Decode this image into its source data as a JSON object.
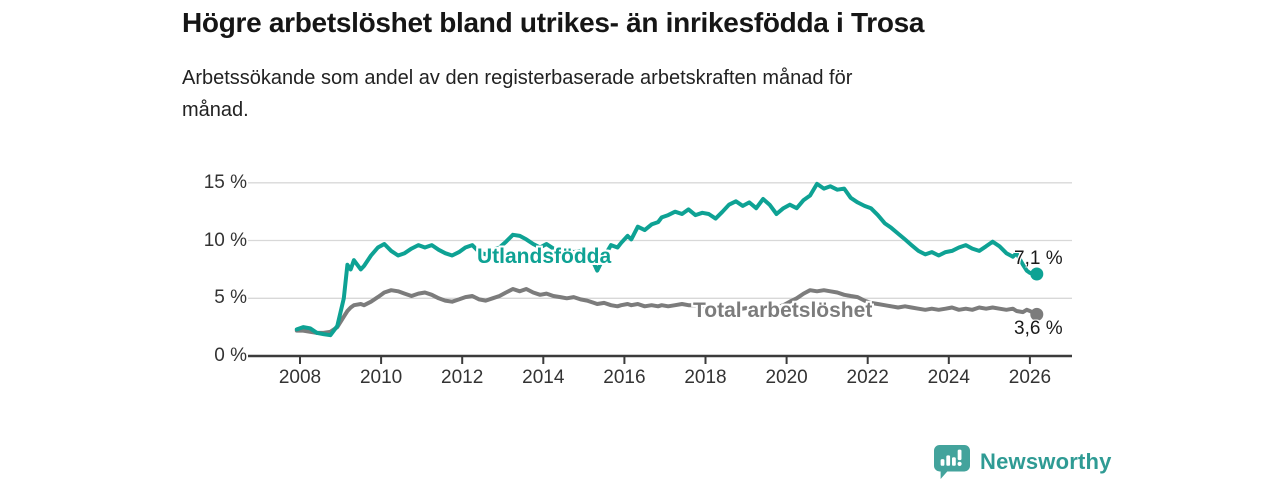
{
  "header": {
    "title": "Högre arbetslöshet bland utrikes- än inrikesfödda i Trosa",
    "subtitle_line1": "Arbetssökande som andel av den registerbaserade arbetskraften månad för",
    "subtitle_line2": "månad."
  },
  "chart_data": {
    "type": "line",
    "title": "Högre arbetslöshet bland utrikes- än inrikesfödda i Trosa",
    "xlabel": "",
    "ylabel": "",
    "x_unit": "year (monthly observations)",
    "xlim": [
      2007.6,
      2027.0
    ],
    "ylim": [
      0,
      15.5
    ],
    "grid": "horizontal",
    "legend_position": "inline-labels",
    "y_ticks": [
      "0 %",
      "5 %",
      "10 %",
      "15 %"
    ],
    "y_tick_values": [
      0,
      5,
      10,
      15
    ],
    "x_ticks": [
      2008,
      2010,
      2012,
      2014,
      2016,
      2018,
      2020,
      2022,
      2024,
      2026
    ],
    "series": [
      {
        "name": "Utlandsfödda",
        "color": "#0ea294",
        "end_label": "7,1 %",
        "end_value": 7.1
      },
      {
        "name": "Total arbetslöshet",
        "color": "#7c7c7c",
        "end_label": "3,6 %",
        "end_value": 3.6
      }
    ],
    "points": [
      [
        2007.92,
        2.3,
        2.2
      ],
      [
        2008.08,
        2.5,
        2.2
      ],
      [
        2008.25,
        2.4,
        2.1
      ],
      [
        2008.42,
        2.0,
        2.0
      ],
      [
        2008.58,
        1.9,
        2.0
      ],
      [
        2008.75,
        1.8,
        2.1
      ],
      [
        2008.92,
        2.6,
        2.5
      ],
      [
        2009.08,
        5.0,
        3.4
      ],
      [
        2009.17,
        7.9,
        3.9
      ],
      [
        2009.25,
        7.5,
        4.2
      ],
      [
        2009.33,
        8.3,
        4.4
      ],
      [
        2009.5,
        7.5,
        4.5
      ],
      [
        2009.58,
        7.8,
        4.4
      ],
      [
        2009.75,
        8.7,
        4.7
      ],
      [
        2009.92,
        9.4,
        5.1
      ],
      [
        2010.08,
        9.7,
        5.5
      ],
      [
        2010.25,
        9.1,
        5.7
      ],
      [
        2010.42,
        8.7,
        5.6
      ],
      [
        2010.58,
        8.9,
        5.4
      ],
      [
        2010.75,
        9.3,
        5.2
      ],
      [
        2010.92,
        9.6,
        5.4
      ],
      [
        2011.08,
        9.4,
        5.5
      ],
      [
        2011.25,
        9.6,
        5.3
      ],
      [
        2011.42,
        9.2,
        5.0
      ],
      [
        2011.58,
        8.9,
        4.8
      ],
      [
        2011.75,
        8.7,
        4.7
      ],
      [
        2011.92,
        9.0,
        4.9
      ],
      [
        2012.08,
        9.4,
        5.1
      ],
      [
        2012.25,
        9.6,
        5.2
      ],
      [
        2012.42,
        9.0,
        4.9
      ],
      [
        2012.58,
        8.8,
        4.8
      ],
      [
        2012.75,
        9.2,
        5.0
      ],
      [
        2012.92,
        9.4,
        5.2
      ],
      [
        2013.08,
        9.9,
        5.5
      ],
      [
        2013.25,
        10.5,
        5.8
      ],
      [
        2013.42,
        10.4,
        5.6
      ],
      [
        2013.58,
        10.1,
        5.8
      ],
      [
        2013.75,
        9.7,
        5.5
      ],
      [
        2013.92,
        9.4,
        5.3
      ],
      [
        2014.08,
        9.7,
        5.4
      ],
      [
        2014.25,
        9.3,
        5.2
      ],
      [
        2014.42,
        9.1,
        5.1
      ],
      [
        2014.58,
        9.2,
        5.0
      ],
      [
        2014.75,
        9.0,
        5.1
      ],
      [
        2014.92,
        9.1,
        4.9
      ],
      [
        2015.08,
        8.8,
        4.8
      ],
      [
        2015.25,
        8.0,
        4.6
      ],
      [
        2015.33,
        7.4,
        4.5
      ],
      [
        2015.5,
        8.6,
        4.6
      ],
      [
        2015.67,
        9.6,
        4.4
      ],
      [
        2015.83,
        9.4,
        4.3
      ],
      [
        2015.92,
        9.8,
        4.4
      ],
      [
        2016.08,
        10.4,
        4.5
      ],
      [
        2016.17,
        10.1,
        4.4
      ],
      [
        2016.33,
        11.2,
        4.5
      ],
      [
        2016.5,
        10.9,
        4.3
      ],
      [
        2016.67,
        11.4,
        4.4
      ],
      [
        2016.83,
        11.6,
        4.3
      ],
      [
        2016.92,
        12.0,
        4.4
      ],
      [
        2017.08,
        12.2,
        4.3
      ],
      [
        2017.25,
        12.5,
        4.4
      ],
      [
        2017.42,
        12.3,
        4.5
      ],
      [
        2017.58,
        12.7,
        4.4
      ],
      [
        2017.75,
        12.2,
        4.4
      ],
      [
        2017.92,
        12.4,
        4.3
      ],
      [
        2018.08,
        12.3,
        4.2
      ],
      [
        2018.25,
        11.9,
        4.3
      ],
      [
        2018.42,
        12.5,
        4.2
      ],
      [
        2018.58,
        13.1,
        4.3
      ],
      [
        2018.75,
        13.4,
        4.2
      ],
      [
        2018.92,
        13.0,
        4.1
      ],
      [
        2019.08,
        13.3,
        4.2
      ],
      [
        2019.25,
        12.8,
        4.1
      ],
      [
        2019.42,
        13.6,
        4.2
      ],
      [
        2019.58,
        13.1,
        4.1
      ],
      [
        2019.75,
        12.3,
        4.2
      ],
      [
        2019.92,
        12.8,
        4.4
      ],
      [
        2020.08,
        13.1,
        4.7
      ],
      [
        2020.25,
        12.8,
        5.0
      ],
      [
        2020.42,
        13.5,
        5.4
      ],
      [
        2020.58,
        13.9,
        5.7
      ],
      [
        2020.75,
        14.9,
        5.6
      ],
      [
        2020.92,
        14.5,
        5.7
      ],
      [
        2021.08,
        14.7,
        5.6
      ],
      [
        2021.25,
        14.4,
        5.5
      ],
      [
        2021.42,
        14.5,
        5.3
      ],
      [
        2021.58,
        13.7,
        5.2
      ],
      [
        2021.75,
        13.3,
        5.1
      ],
      [
        2021.92,
        13.0,
        4.8
      ],
      [
        2022.08,
        12.8,
        4.6
      ],
      [
        2022.25,
        12.2,
        4.5
      ],
      [
        2022.42,
        11.5,
        4.4
      ],
      [
        2022.58,
        11.1,
        4.3
      ],
      [
        2022.75,
        10.6,
        4.2
      ],
      [
        2022.92,
        10.1,
        4.3
      ],
      [
        2023.08,
        9.6,
        4.2
      ],
      [
        2023.25,
        9.1,
        4.1
      ],
      [
        2023.42,
        8.8,
        4.0
      ],
      [
        2023.58,
        9.0,
        4.1
      ],
      [
        2023.75,
        8.7,
        4.0
      ],
      [
        2023.92,
        9.0,
        4.1
      ],
      [
        2024.08,
        9.1,
        4.2
      ],
      [
        2024.25,
        9.4,
        4.0
      ],
      [
        2024.42,
        9.6,
        4.1
      ],
      [
        2024.58,
        9.3,
        4.0
      ],
      [
        2024.75,
        9.1,
        4.2
      ],
      [
        2024.92,
        9.5,
        4.1
      ],
      [
        2025.08,
        9.9,
        4.2
      ],
      [
        2025.25,
        9.5,
        4.1
      ],
      [
        2025.42,
        8.9,
        4.0
      ],
      [
        2025.58,
        8.6,
        4.1
      ],
      [
        2025.67,
        8.9,
        3.9
      ],
      [
        2025.83,
        7.9,
        3.8
      ],
      [
        2025.92,
        7.4,
        4.0
      ],
      [
        2026.0,
        7.2,
        3.9
      ],
      [
        2026.17,
        7.1,
        3.6
      ]
    ]
  },
  "colors": {
    "accent_teal": "#0ea294",
    "line_gray": "#7c7c7c",
    "gridline": "#d8d8d8",
    "axis": "#3b3b3b",
    "logo_teal": "#43a39c",
    "brand_text_teal": "#2f9b94"
  },
  "footer": {
    "brand": "Newsworthy"
  }
}
